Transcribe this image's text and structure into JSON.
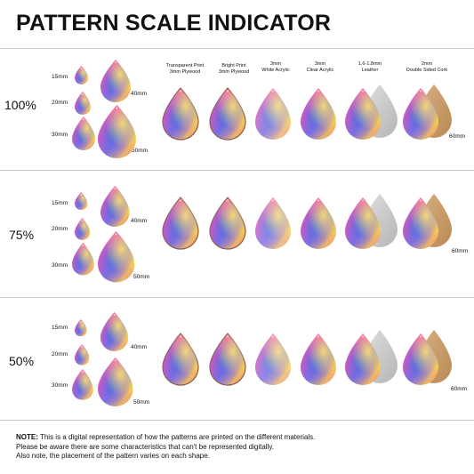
{
  "title": "PATTERN SCALE INDICATOR",
  "scales": [
    "100%",
    "75%",
    "50%"
  ],
  "sizes": [
    "15mm",
    "20mm",
    "30mm",
    "40mm",
    "50mm"
  ],
  "large_size": "60mm",
  "materials": [
    {
      "line1": "Transparent Print",
      "line2": "3mm Plywood"
    },
    {
      "line1": "Bright Print",
      "line2": "3mm Plywood"
    },
    {
      "line1": "3mm",
      "line2": "White Acrylic"
    },
    {
      "line1": "3mm",
      "line2": "Clear Acrylic"
    },
    {
      "line1": "1.6-1.8mm",
      "line2": "Leather"
    },
    {
      "line1": "2mm",
      "line2": "Double Sided Cork"
    }
  ],
  "note": {
    "label": "NOTE:",
    "line1": " This is a digital representation of how the patterns are printed on the different materials.",
    "line2": "Please be aware there are some characteristics that can't be represented digitally.",
    "line3": "Also note, the placement of the pattern varies on each shape."
  },
  "colors": {
    "pink": "#f25aa8",
    "blue": "#3b6fe0",
    "yellow": "#f5d84a",
    "violet": "#9a5be0",
    "cyan": "#5ac8f0",
    "leather": "#c9c9c9",
    "cork": "#c9a070",
    "wood_edge": "#8a5a40"
  }
}
